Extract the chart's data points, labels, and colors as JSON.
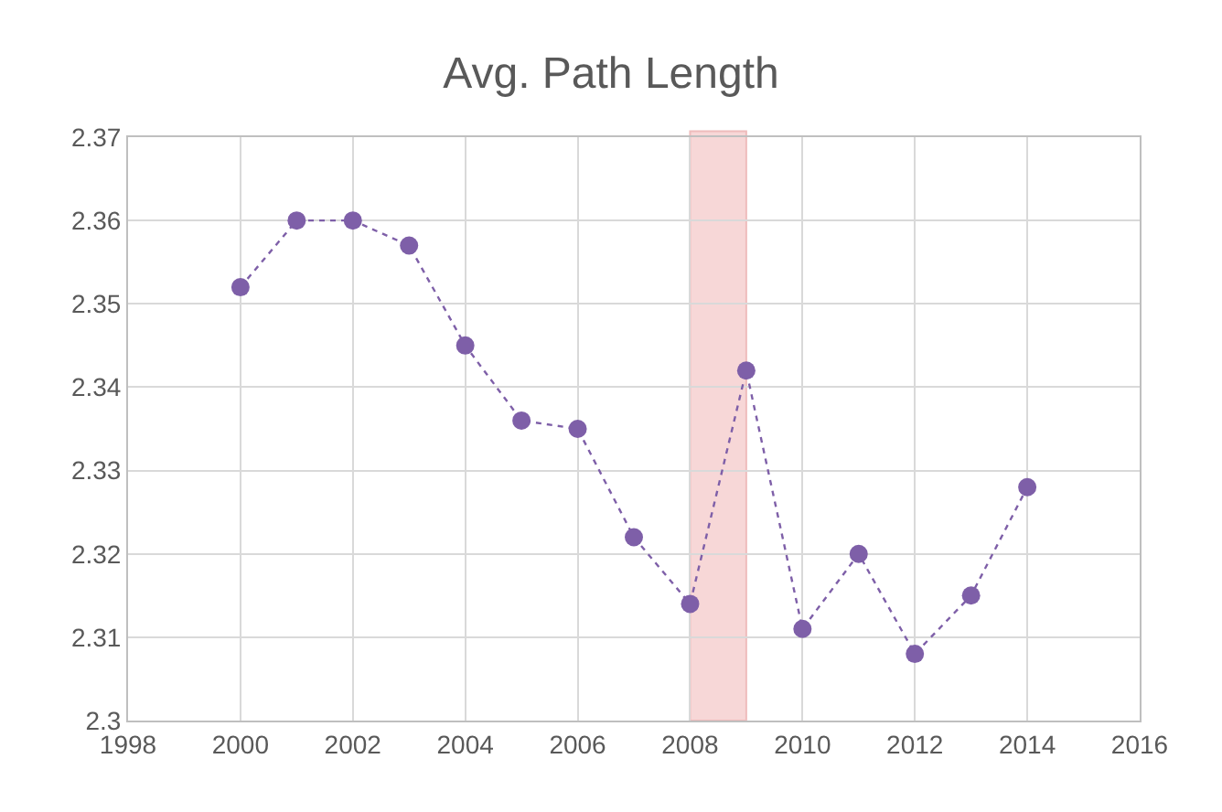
{
  "chart_data": {
    "type": "line",
    "title": "Avg. Path Length",
    "x": [
      2000,
      2001,
      2002,
      2003,
      2004,
      2005,
      2006,
      2007,
      2008,
      2009,
      2010,
      2011,
      2012,
      2013,
      2014
    ],
    "series": [
      {
        "color": "#7e5fa8",
        "values": [
          2.352,
          2.36,
          2.36,
          2.357,
          2.345,
          2.336,
          2.335,
          2.322,
          2.314,
          2.342,
          2.311,
          2.32,
          2.308,
          2.315,
          2.328
        ]
      }
    ],
    "xlim": [
      1998,
      2016
    ],
    "xticks": [
      1998,
      2000,
      2002,
      2004,
      2006,
      2008,
      2010,
      2012,
      2014,
      2016
    ],
    "ylim": [
      2.3,
      2.37
    ],
    "yticks": [
      {
        "value": 2.3,
        "label": "2.3"
      },
      2.31,
      2.32,
      2.33,
      2.34,
      2.35,
      2.36,
      2.37
    ],
    "bands": [
      {
        "axis": "x",
        "from": 2008,
        "to": 2009,
        "color": "#f4c7c7"
      }
    ],
    "grid": true,
    "marker": "circle",
    "line_style": "dotted"
  }
}
